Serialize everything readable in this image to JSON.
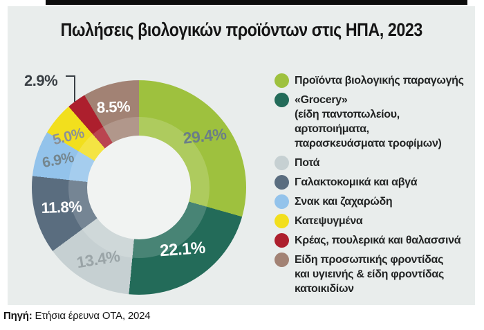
{
  "title": "Πωλήσεις βιολογικών προϊόντων στις ΗΠΑ, 2023",
  "source": {
    "prefix": "Πηγή:",
    "text": " Ετήσια έρευνα ΟΤΑ, 2024"
  },
  "colors": {
    "card_background": "#e9edec",
    "page_background": "#ffffff",
    "top_rule": "#0d0d0d",
    "donut_hole": "#f1f3f2",
    "callout_line": "#393f44"
  },
  "chart_data": {
    "type": "pie",
    "donut": true,
    "title": "Πωλήσεις βιολογικών προϊόντων στις ΗΠΑ, 2023",
    "unit": "%",
    "start_angle_deg": 0,
    "direction": "clockwise",
    "legend_position": "right",
    "slices": [
      {
        "name": "Προϊόντα βιολογικής παραγωγής",
        "value": 29.4,
        "display": "29.4%",
        "color": "#9ec13e",
        "label_color": "#6b7e88",
        "legend_lines": [
          "Προϊόντα βιολογικής παραγωγής"
        ]
      },
      {
        "name": "«Grocery» (είδη παντοπωλείου, αρτοποιήματα, παρασκευάσματα τροφίμων)",
        "value": 22.1,
        "display": "22.1%",
        "color": "#236b59",
        "label_color": "#ffffff",
        "legend_lines": [
          "«Grocery»",
          "(είδη παντοπωλείου, αρτοποιήματα,",
          "παρασκευάσματα τροφίμων)"
        ]
      },
      {
        "name": "Ποτά",
        "value": 13.4,
        "display": "13.4%",
        "color": "#c6d0d2",
        "label_color": "#9aa4a7",
        "legend_lines": [
          "Ποτά"
        ]
      },
      {
        "name": "Γαλακτοκομικά και αβγά",
        "value": 11.8,
        "display": "11.8%",
        "color": "#5a6d7f",
        "label_color": "#ffffff",
        "legend_lines": [
          "Γαλακτοκομικά και αβγά"
        ]
      },
      {
        "name": "Σνακ και ζαχαρώδη",
        "value": 6.9,
        "display": "6.9%",
        "color": "#93c3eb",
        "label_color": "#75868e",
        "legend_lines": [
          "Σνακ και ζαχαρώδη"
        ]
      },
      {
        "name": "Κατεψυγμένα",
        "value": 5.0,
        "display": "5.0%",
        "color": "#f2df1d",
        "label_color": "#8c9196",
        "legend_lines": [
          "Κατεψυγμένα"
        ]
      },
      {
        "name": "Κρέας, πουλερικά και θαλασσινά",
        "value": 2.9,
        "display": "2.9%",
        "color": "#ad1f2d",
        "label_color": "#393f44",
        "legend_lines": [
          "Κρέας, πουλερικά και θαλασσινά"
        ]
      },
      {
        "name": "Είδη προσωπικής φροντίδας και υγιεινής & είδη φροντίδας κατοικιδίων",
        "value": 8.5,
        "display": "8.5%",
        "color": "#a28274",
        "label_color": "#ffffff",
        "legend_lines": [
          "Είδη προσωπικής φροντίδας",
          "και υγιεινής & είδη φροντίδας",
          "κατοικιδίων"
        ]
      }
    ]
  }
}
